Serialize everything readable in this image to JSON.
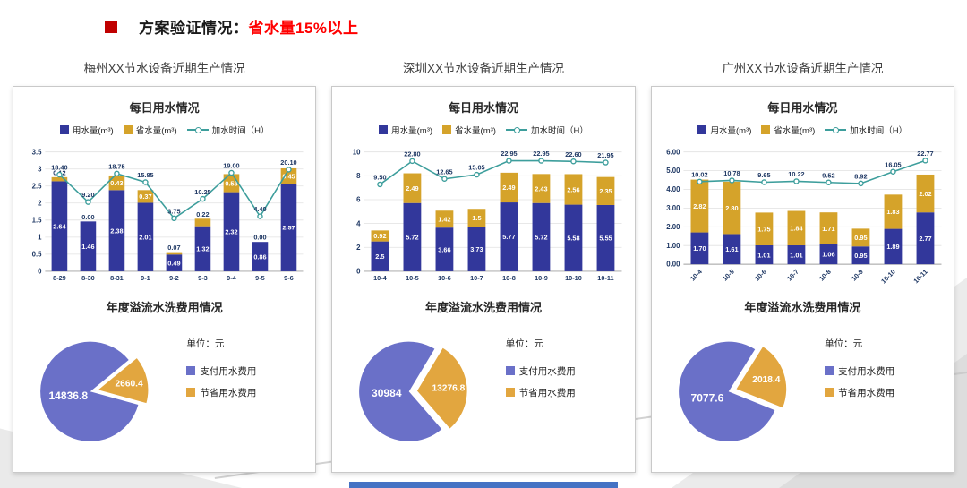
{
  "slide": {
    "title": {
      "prefix": "方案验证情况：",
      "highlight": "省水量15%以上"
    },
    "colors": {
      "bullet_red": "#C00000",
      "highlight_red": "#FF0000",
      "bar_blue": "#32379B",
      "bar_gold": "#D5A32A",
      "line_teal": "#3D9E9C",
      "label_navy": "#1F3864",
      "pie_blue": "#6A70C8",
      "pie_orange": "#E2A63F",
      "deco_gray": "#D8D8D8",
      "footer_blue": "#4472C4"
    }
  },
  "panel_headers": [
    "梅州XX节水设备近期生产情况",
    "深圳XX节水设备近期生产情况",
    "广州XX节水设备近期生产情况"
  ],
  "chart_data": [
    {
      "type": "bar",
      "subtype": "stacked-bar-with-line",
      "panel": "梅州",
      "title": "每日用水情况",
      "legend": [
        "用水量(m³)",
        "省水量(m³)",
        "加水时间（H）"
      ],
      "legend_position": "top",
      "grid": true,
      "categories": [
        "8-29",
        "8-30",
        "8-31",
        "9-1",
        "9-2",
        "9-3",
        "9-4",
        "9-5",
        "9-6"
      ],
      "y_ticks": [
        "3.5",
        "3",
        "2.5",
        "2",
        "1.5",
        "1",
        "0.5",
        "0"
      ],
      "ylim": [
        0,
        3.5
      ],
      "line_axis": [
        -14,
        26
      ],
      "rotate_x": false,
      "series": [
        {
          "name": "用水量(m³)",
          "values": [
            2.64,
            1.46,
            2.38,
            2.01,
            0.49,
            1.32,
            2.32,
            0.86,
            2.57
          ],
          "labels": [
            "2.64",
            "1.46",
            "2.38",
            "2.01",
            "0.49",
            "1.32",
            "2.32",
            "0.86",
            "2.57"
          ]
        },
        {
          "name": "省水量(m³)",
          "values": [
            0.12,
            0,
            0.43,
            0.37,
            0.07,
            0.22,
            0.53,
            0,
            0.45
          ],
          "labels": [
            "0.12",
            "0.00",
            "0.43",
            "0.37",
            "0.07",
            "0.22",
            "0.53",
            "0.00",
            "0.45"
          ]
        },
        {
          "name": "加水时间（H）",
          "values": [
            18.4,
            9.2,
            18.75,
            15.85,
            3.75,
            10.25,
            19,
            4.4,
            20.1
          ],
          "labels": [
            "18.40",
            "9.20",
            "18.75",
            "15.85",
            "3.75",
            "10.25",
            "19.00",
            "4.40",
            "20.10"
          ]
        }
      ]
    },
    {
      "type": "pie",
      "panel": "梅州",
      "title": "年度溢流水洗费用情况",
      "unit": "单位：元",
      "legend_position": "right",
      "slices": [
        {
          "label": "支付用水费用",
          "value": 14836.8,
          "display": "14836.8",
          "exploded": false
        },
        {
          "label": "节省用水费用",
          "value": 2660.4,
          "display": "2660.4",
          "exploded": true
        }
      ],
      "orange_center_deg": 78
    },
    {
      "type": "bar",
      "subtype": "stacked-bar-with-line",
      "panel": "深圳",
      "title": "每日用水情况",
      "legend": [
        "用水量(m³)",
        "省水量(m³)",
        "加水时间（H）"
      ],
      "legend_position": "top",
      "grid": true,
      "categories": [
        "10-4",
        "10-5",
        "10-6",
        "10-7",
        "10-8",
        "10-9",
        "10-10",
        "10-11"
      ],
      "y_ticks": [
        "10",
        "8",
        "6",
        "4",
        "2",
        "0"
      ],
      "ylim": [
        0,
        10
      ],
      "line_axis": [
        -40,
        28
      ],
      "rotate_x": false,
      "series": [
        {
          "name": "用水量(m³)",
          "values": [
            2.5,
            5.72,
            3.66,
            3.73,
            5.77,
            5.72,
            5.58,
            5.55
          ],
          "labels": [
            "2.5",
            "5.72",
            "3.66",
            "3.73",
            "5.77",
            "5.72",
            "5.58",
            "5.55"
          ]
        },
        {
          "name": "省水量(m³)",
          "values": [
            0.92,
            2.49,
            1.42,
            1.5,
            2.49,
            2.43,
            2.56,
            2.35
          ],
          "labels": [
            "0.92",
            "2.49",
            "1.42",
            "1.5",
            "2.49",
            "2.43",
            "2.56",
            "2.35"
          ]
        },
        {
          "name": "加水时间（H）",
          "values": [
            9.5,
            22.8,
            12.65,
            15.05,
            22.95,
            22.95,
            22.6,
            21.95
          ],
          "labels": [
            "9.50",
            "22.80",
            "12.65",
            "15.05",
            "22.95",
            "22.95",
            "22.60",
            "21.95"
          ]
        }
      ]
    },
    {
      "type": "pie",
      "panel": "深圳",
      "title": "年度溢流水洗费用情况",
      "unit": "单位：元",
      "legend_position": "right",
      "slices": [
        {
          "label": "支付用水费用",
          "value": 30984,
          "display": "30984",
          "exploded": false
        },
        {
          "label": "节省用水费用",
          "value": 13276.8,
          "display": "13276.8",
          "exploded": true
        }
      ],
      "orange_center_deg": 85
    },
    {
      "type": "bar",
      "subtype": "stacked-bar-with-line",
      "panel": "广州",
      "title": "每日用水情况",
      "legend": [
        "用水量(m³)",
        "省水量(m³)",
        "加水时间（H）"
      ],
      "legend_position": "top",
      "grid": true,
      "categories": [
        "10-4",
        "10-5",
        "10-6",
        "10-7",
        "10-8",
        "10-9",
        "10-10",
        "10-11"
      ],
      "y_ticks": [
        "6.00",
        "5.00",
        "4.00",
        "3.00",
        "2.00",
        "1.00",
        "0.00"
      ],
      "ylim": [
        0,
        6
      ],
      "line_axis": [
        -40,
        28
      ],
      "rotate_x": true,
      "series": [
        {
          "name": "用水量(m³)",
          "values": [
            1.7,
            1.61,
            1.01,
            1.01,
            1.06,
            0.95,
            1.89,
            2.77
          ],
          "labels": [
            "1.70",
            "1.61",
            "1.01",
            "1.01",
            "1.06",
            "0.95",
            "1.89",
            "2.77"
          ]
        },
        {
          "name": "省水量(m³)",
          "values": [
            2.82,
            2.8,
            1.75,
            1.84,
            1.71,
            0.95,
            1.83,
            2.02
          ],
          "labels": [
            "2.82",
            "2.80",
            "1.75",
            "1.84",
            "1.71",
            "0.95",
            "1.83",
            "2.02"
          ]
        },
        {
          "name": "加水时间（H）",
          "values": [
            10.02,
            10.78,
            9.65,
            10.22,
            9.52,
            8.92,
            16.05,
            22.77
          ],
          "labels": [
            "10.02",
            "10.78",
            "9.65",
            "10.22",
            "9.52",
            "8.92",
            "16.05",
            "22.77"
          ]
        }
      ]
    },
    {
      "type": "pie",
      "panel": "广州",
      "title": "年度溢流水洗费用情况",
      "unit": "单位：元",
      "legend_position": "right",
      "slices": [
        {
          "label": "支付用水费用",
          "value": 7077.6,
          "display": "7077.6",
          "exploded": false
        },
        {
          "label": "节省用水费用",
          "value": 2018.4,
          "display": "2018.4",
          "exploded": true
        }
      ],
      "orange_center_deg": 72
    }
  ]
}
